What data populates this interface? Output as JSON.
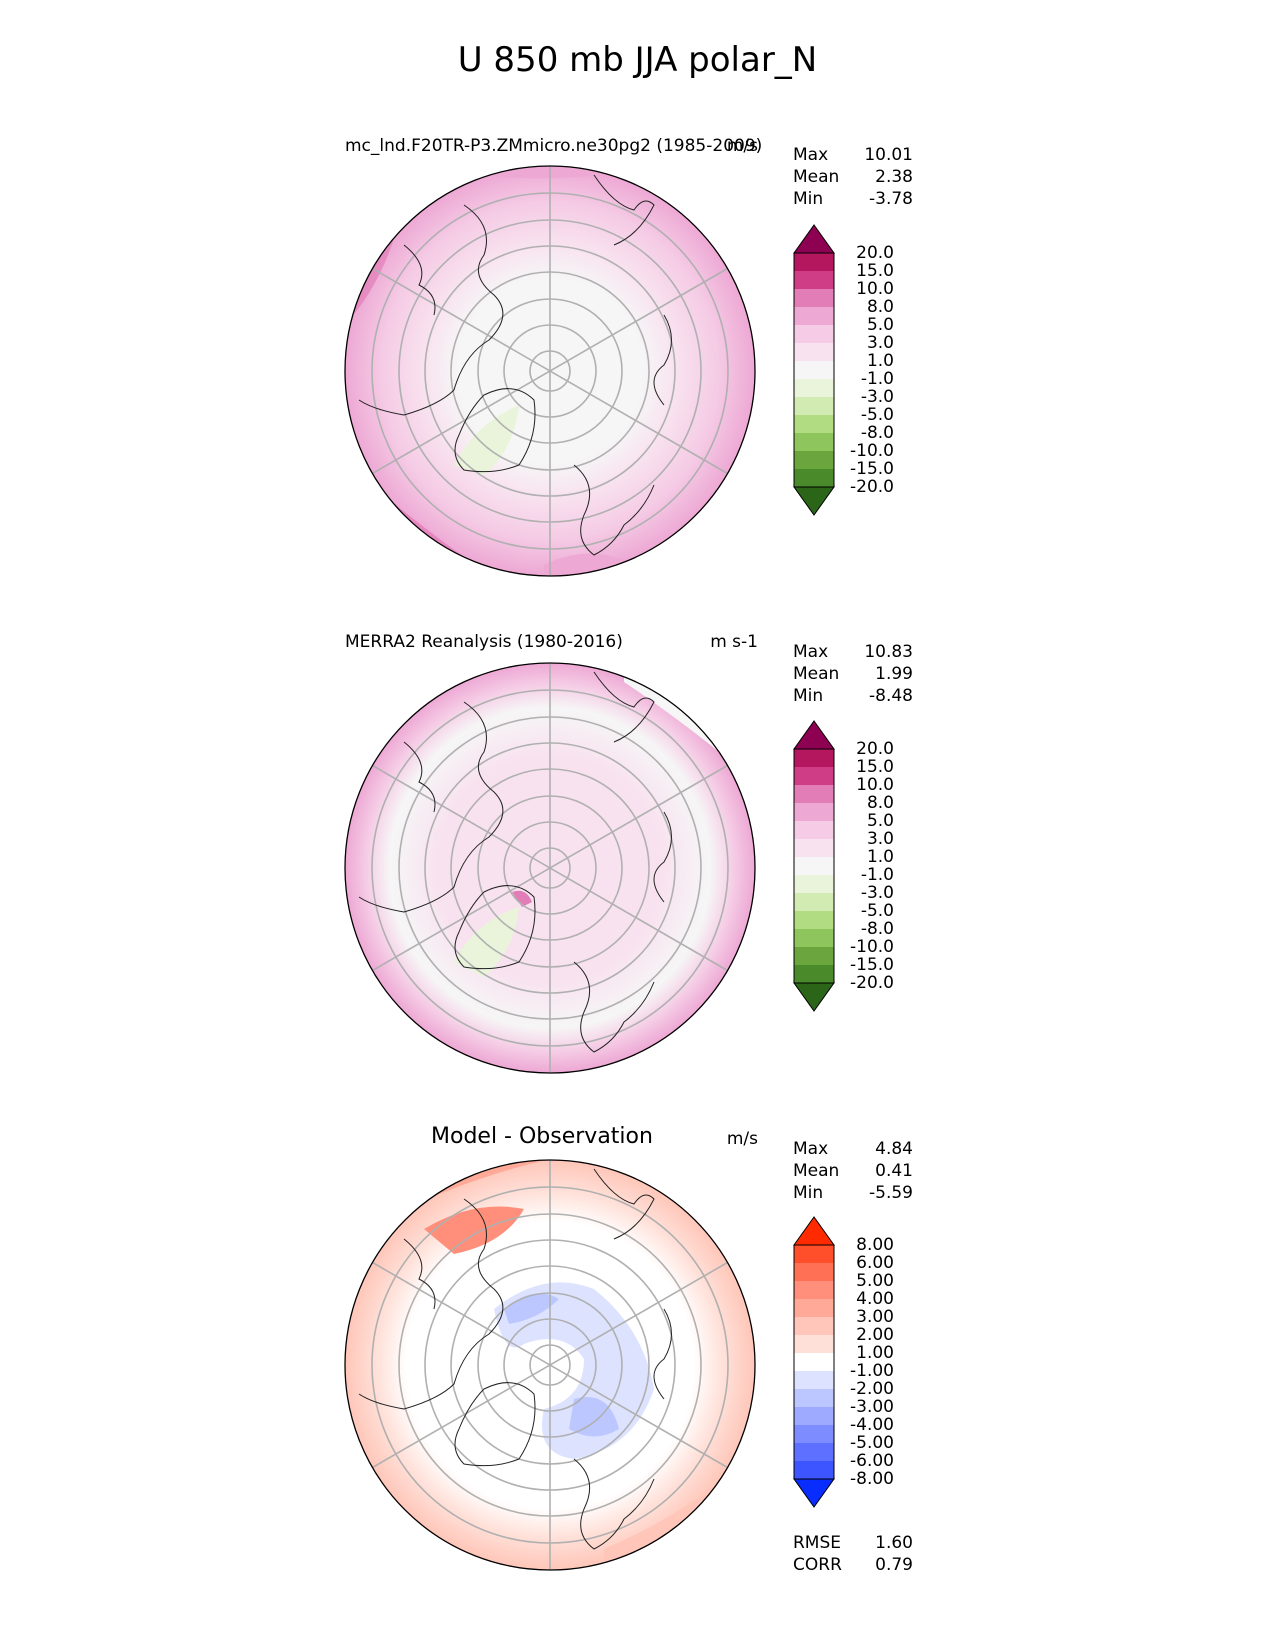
{
  "title": "U 850 mb JJA polar_N",
  "panels": [
    {
      "id": "test",
      "left_title": "mc_lnd.F20TR-P3.ZMmicro.ne30pg2 (1985-2009)",
      "units": "m/s",
      "stats": [
        {
          "label": "Max",
          "value": "10.01"
        },
        {
          "label": "Mean",
          "value": "2.38"
        },
        {
          "label": "Min",
          "value": "-3.78"
        }
      ],
      "colorbar_labels": [
        "20.0",
        "15.0",
        "10.0",
        "8.0",
        "5.0",
        "3.0",
        "1.0",
        "-1.0",
        "-3.0",
        "-5.0",
        "-8.0",
        "-10.0",
        "-15.0",
        "-20.0"
      ],
      "colorbar_colors": [
        "#8e0152",
        "#b5175f",
        "#cf3d86",
        "#e27db8",
        "#eda8d4",
        "#f5cbe5",
        "#f8e2ef",
        "#f6f6f6",
        "#e9f4db",
        "#d2ebb2",
        "#b2dc82",
        "#8fc55d",
        "#6ba53d",
        "#4a8a2b",
        "#2a6518"
      ]
    },
    {
      "id": "reference",
      "left_title": "MERRA2 Reanalysis (1980-2016)",
      "units": "m s-1",
      "stats": [
        {
          "label": "Max",
          "value": "10.83"
        },
        {
          "label": "Mean",
          "value": "1.99"
        },
        {
          "label": "Min",
          "value": "-8.48"
        }
      ],
      "colorbar_labels": [
        "20.0",
        "15.0",
        "10.0",
        "8.0",
        "5.0",
        "3.0",
        "1.0",
        "-1.0",
        "-3.0",
        "-5.0",
        "-8.0",
        "-10.0",
        "-15.0",
        "-20.0"
      ],
      "colorbar_colors": [
        "#8e0152",
        "#b5175f",
        "#cf3d86",
        "#e27db8",
        "#eda8d4",
        "#f5cbe5",
        "#f8e2ef",
        "#f6f6f6",
        "#e9f4db",
        "#d2ebb2",
        "#b2dc82",
        "#8fc55d",
        "#6ba53d",
        "#4a8a2b",
        "#2a6518"
      ]
    },
    {
      "id": "difference",
      "center_title": "Model - Observation",
      "units": "m/s",
      "stats": [
        {
          "label": "Max",
          "value": "4.84"
        },
        {
          "label": "Mean",
          "value": "0.41"
        },
        {
          "label": "Min",
          "value": "-5.59"
        }
      ],
      "colorbar_labels": [
        "8.00",
        "6.00",
        "5.00",
        "4.00",
        "3.00",
        "2.00",
        "1.00",
        "-1.00",
        "-2.00",
        "-3.00",
        "-4.00",
        "-5.00",
        "-6.00",
        "-8.00"
      ],
      "colorbar_colors": [
        "#ff2a00",
        "#ff4f2a",
        "#ff7055",
        "#ff8f7a",
        "#ffaa98",
        "#ffc6b9",
        "#ffe0d8",
        "#ffffff",
        "#dde3ff",
        "#bcc7ff",
        "#9daaff",
        "#7d8cff",
        "#5d70ff",
        "#3d55ff",
        "#0a2dff"
      ],
      "metrics": [
        {
          "label": "RMSE",
          "value": "1.60"
        },
        {
          "label": "CORR",
          "value": "0.79"
        }
      ]
    }
  ]
}
